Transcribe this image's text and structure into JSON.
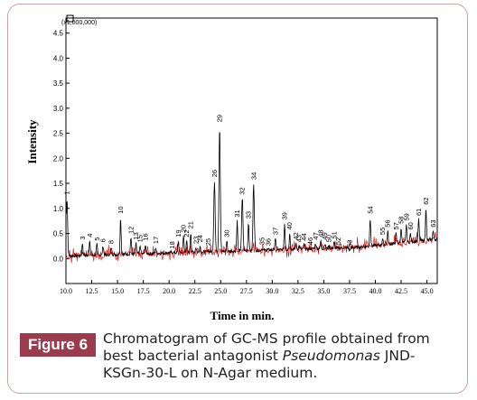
{
  "figure": {
    "label": "Figure 6",
    "caption_part1": "Chromatogram of GC-MS profile obtained from best bacterial antagonist ",
    "caption_italic": "Pseudomonas",
    "caption_part2": " JND-KSGn-30-L on N-Agar medium."
  },
  "chart_data": {
    "type": "line",
    "scale_label": "(x1,000,000)",
    "xlabel": "Time in min.",
    "ylabel": "Intensity",
    "xlim": [
      10.0,
      46.0
    ],
    "ylim": [
      -0.5,
      4.8
    ],
    "x_ticks": [
      "10.0",
      "12.5",
      "15.0",
      "17.5",
      "20.0",
      "22.5",
      "25.0",
      "27.5",
      "30.0",
      "32.5",
      "35.0",
      "37.5",
      "40.0",
      "42.5",
      "45.0"
    ],
    "x_tick_values": [
      10.0,
      12.5,
      15.0,
      17.5,
      20.0,
      22.5,
      25.0,
      27.5,
      30.0,
      32.5,
      35.0,
      37.5,
      40.0,
      42.5,
      45.0
    ],
    "y_ticks": [
      "0.0",
      "0.5",
      "1.0",
      "1.5",
      "2.0",
      "2.5",
      "3.0",
      "3.5",
      "4.0",
      "4.5"
    ],
    "y_tick_values": [
      0.0,
      0.5,
      1.0,
      1.5,
      2.0,
      2.5,
      3.0,
      3.5,
      4.0,
      4.5
    ],
    "line_color": "#000000",
    "baseline_color": "#e00000",
    "grid": false,
    "peaks": [
      {
        "label": "1",
        "x": 10.1,
        "y": 1.2
      },
      {
        "label": "3",
        "x": 11.6,
        "y": 0.3
      },
      {
        "label": "4",
        "x": 12.3,
        "y": 0.35
      },
      {
        "label": "5",
        "x": 13.0,
        "y": 0.28
      },
      {
        "label": "6",
        "x": 13.6,
        "y": 0.25
      },
      {
        "label": "8",
        "x": 14.4,
        "y": 0.22
      },
      {
        "label": "10",
        "x": 15.3,
        "y": 0.82
      },
      {
        "label": "12",
        "x": 16.3,
        "y": 0.42
      },
      {
        "label": "13",
        "x": 16.8,
        "y": 0.3
      },
      {
        "label": "15",
        "x": 17.2,
        "y": 0.25
      },
      {
        "label": "16",
        "x": 17.7,
        "y": 0.28
      },
      {
        "label": "17",
        "x": 18.7,
        "y": 0.22
      },
      {
        "label": "18",
        "x": 20.3,
        "y": 0.12
      },
      {
        "label": "19",
        "x": 20.9,
        "y": 0.35
      },
      {
        "label": "20",
        "x": 21.4,
        "y": 0.45
      },
      {
        "label": "21",
        "x": 22.1,
        "y": 0.52
      },
      {
        "label": "22",
        "x": 21.7,
        "y": 0.35
      },
      {
        "label": "23",
        "x": 22.6,
        "y": 0.22
      },
      {
        "label": "24",
        "x": 23.0,
        "y": 0.25
      },
      {
        "label": "25",
        "x": 23.8,
        "y": 0.18
      },
      {
        "label": "26",
        "x": 24.4,
        "y": 1.55
      },
      {
        "label": "29",
        "x": 24.9,
        "y": 2.65
      },
      {
        "label": "30",
        "x": 25.6,
        "y": 0.35
      },
      {
        "label": "31",
        "x": 26.6,
        "y": 0.75
      },
      {
        "label": "32",
        "x": 27.1,
        "y": 1.2
      },
      {
        "label": "33",
        "x": 27.7,
        "y": 0.72
      },
      {
        "label": "34",
        "x": 28.2,
        "y": 1.5
      },
      {
        "label": "35",
        "x": 29.0,
        "y": 0.2
      },
      {
        "label": "36",
        "x": 29.6,
        "y": 0.18
      },
      {
        "label": "37",
        "x": 30.3,
        "y": 0.4
      },
      {
        "label": "39",
        "x": 31.2,
        "y": 0.7
      },
      {
        "label": "40",
        "x": 31.7,
        "y": 0.5
      },
      {
        "label": "42",
        "x": 32.3,
        "y": 0.3
      },
      {
        "label": "43",
        "x": 32.6,
        "y": 0.25
      },
      {
        "label": "44",
        "x": 33.1,
        "y": 0.28
      },
      {
        "label": "46",
        "x": 33.7,
        "y": 0.2
      },
      {
        "label": "47",
        "x": 34.2,
        "y": 0.3
      },
      {
        "label": "48",
        "x": 34.7,
        "y": 0.35
      },
      {
        "label": "49",
        "x": 35.1,
        "y": 0.3
      },
      {
        "label": "50",
        "x": 35.5,
        "y": 0.25
      },
      {
        "label": "51",
        "x": 36.0,
        "y": 0.32
      },
      {
        "label": "52",
        "x": 36.4,
        "y": 0.2
      },
      {
        "label": "53",
        "x": 37.5,
        "y": 0.15
      },
      {
        "label": "54",
        "x": 39.5,
        "y": 0.82
      },
      {
        "label": "55",
        "x": 40.7,
        "y": 0.4
      },
      {
        "label": "56",
        "x": 41.2,
        "y": 0.55
      },
      {
        "label": "57",
        "x": 42.0,
        "y": 0.5
      },
      {
        "label": "58",
        "x": 42.5,
        "y": 0.62
      },
      {
        "label": "59",
        "x": 43.0,
        "y": 0.68
      },
      {
        "label": "60",
        "x": 43.4,
        "y": 0.5
      },
      {
        "label": "61",
        "x": 44.2,
        "y": 0.78
      },
      {
        "label": "62",
        "x": 44.9,
        "y": 1.0
      },
      {
        "label": "63",
        "x": 45.6,
        "y": 0.55
      }
    ]
  }
}
